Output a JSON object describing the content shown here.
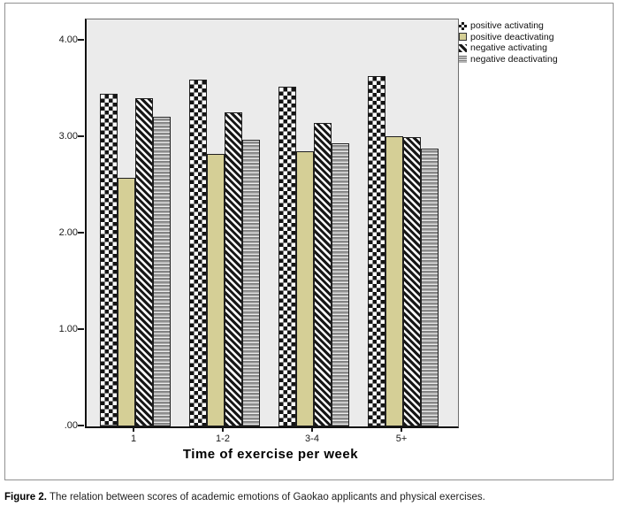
{
  "figure": {
    "caption_label": "Figure 2.",
    "caption_text": "The relation between scores of academic emotions of Gaokao applicants and physical exercises."
  },
  "chart_data": {
    "type": "bar",
    "title": "",
    "xlabel": "Time of exercise per week",
    "ylabel": "",
    "categories": [
      "1",
      "1-2",
      "3-4",
      "5+"
    ],
    "series": [
      {
        "name": "positive activating",
        "pattern": "checker",
        "values": [
          3.45,
          3.6,
          3.52,
          3.63
        ]
      },
      {
        "name": "positive deactivating",
        "pattern": "solid",
        "color": "#d5cf96",
        "values": [
          2.58,
          2.83,
          2.85,
          3.01
        ]
      },
      {
        "name": "negative activating",
        "pattern": "diagonal",
        "values": [
          3.4,
          3.26,
          3.15,
          3.0
        ]
      },
      {
        "name": "negative deactivating",
        "pattern": "hstripe",
        "values": [
          3.21,
          2.97,
          2.94,
          2.88
        ]
      }
    ],
    "y_ticks": [
      {
        "label": ".00",
        "value": 0
      },
      {
        "label": "1.00",
        "value": 1
      },
      {
        "label": "2.00",
        "value": 2
      },
      {
        "label": "3.00",
        "value": 3
      },
      {
        "label": "4.00",
        "value": 4
      }
    ],
    "ylim": [
      0,
      4.22
    ],
    "grid": false,
    "legend_position": "outside-top-right",
    "plot_bg": "#ebebeb",
    "bar_colors": {
      "solid_fill": "#d5cf96",
      "pattern_ink": "#141414"
    }
  }
}
